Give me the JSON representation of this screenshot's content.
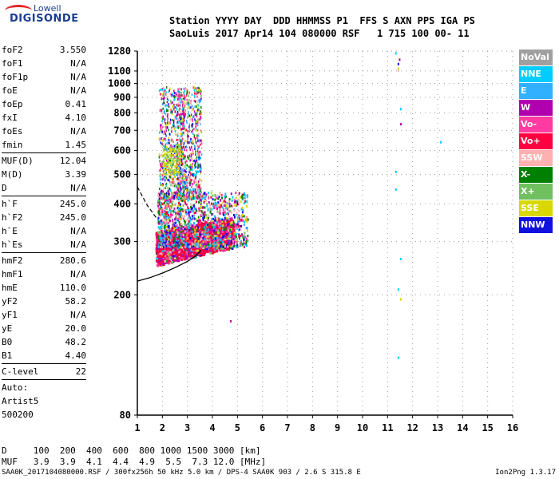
{
  "logo": {
    "line1": "Lowell",
    "line2": "DIGISONDE"
  },
  "header": {
    "line1": "Station YYYY DAY  DDD HHMMSS P1  FFS S AXN PPS IGA PS",
    "line2": "SaoLuis 2017 Apr14 104 080000 RSF   1 715 100 00- 11"
  },
  "params": [
    {
      "label": "foF2",
      "value": "3.550"
    },
    {
      "label": "foF1",
      "value": "N/A"
    },
    {
      "label": "foF1p",
      "value": "N/A"
    },
    {
      "label": "foE",
      "value": "N/A"
    },
    {
      "label": "foEp",
      "value": "0.41"
    },
    {
      "label": "fxI",
      "value": "4.10"
    },
    {
      "label": "foEs",
      "value": "N/A"
    },
    {
      "label": "fmin",
      "value": "1.45"
    },
    {
      "sep": true
    },
    {
      "label": "MUF(D)",
      "value": "12.04"
    },
    {
      "label": "M(D)",
      "value": "3.39"
    },
    {
      "label": "D",
      "value": "N/A"
    },
    {
      "sep": true
    },
    {
      "label": "h`F",
      "value": "245.0"
    },
    {
      "label": "h`F2",
      "value": "245.0"
    },
    {
      "label": "h`E",
      "value": "N/A"
    },
    {
      "label": "h`Es",
      "value": "N/A"
    },
    {
      "sep": true
    },
    {
      "label": "hmF2",
      "value": "280.6"
    },
    {
      "label": "hmF1",
      "value": "N/A"
    },
    {
      "label": "hmE",
      "value": "110.0"
    },
    {
      "label": "yF2",
      "value": "58.2"
    },
    {
      "label": "yF1",
      "value": "N/A"
    },
    {
      "label": "yE",
      "value": "20.0"
    },
    {
      "label": "B0",
      "value": "48.2"
    },
    {
      "label": "B1",
      "value": "4.40"
    },
    {
      "sep": true
    },
    {
      "label": "C-level",
      "value": "22"
    },
    {
      "sep": true
    },
    {
      "text": "Auto:"
    },
    {
      "text": "Artist5"
    },
    {
      "text": "500200"
    }
  ],
  "legend": [
    {
      "label": "NoVal",
      "color": "#a0a0a0"
    },
    {
      "label": "NNE",
      "color": "#00ccff"
    },
    {
      "label": "E",
      "color": "#30b0ff"
    },
    {
      "label": "W",
      "color": "#b000b0"
    },
    {
      "label": "Vo-",
      "color": "#ff3aa0"
    },
    {
      "label": "Vo+",
      "color": "#ff0040"
    },
    {
      "label": "SSW",
      "color": "#ffb0b0"
    },
    {
      "label": "X-",
      "color": "#008000"
    },
    {
      "label": "X+",
      "color": "#70c060"
    },
    {
      "label": "SSE",
      "color": "#d8d800"
    },
    {
      "label": "NNW",
      "color": "#1010e0"
    }
  ],
  "dmuf": {
    "d_line": "D     100  200  400  600  800 1000 1500 3000 [km]",
    "muf_line": "MUF   3.9  3.9  4.1  4.4  4.9  5.5  7.3 12.0 [MHz]"
  },
  "footer": {
    "text": "SAA0K_2017104080000.RSF / 300fx256h 50 kHz 5.0 km / DPS-4 SAA0K 903 / 2.6 S 315.8 E",
    "version": "Ion2Png 1.3.17"
  },
  "chart_data": {
    "type": "scatter",
    "x": {
      "min": 1,
      "max": 16,
      "ticks": [
        1,
        2,
        3,
        4,
        5,
        6,
        7,
        8,
        9,
        10,
        11,
        12,
        13,
        14,
        15,
        16
      ]
    },
    "y": {
      "scale": "log",
      "min": 80,
      "max": 1280,
      "ticks": [
        80,
        200,
        300,
        400,
        500,
        600,
        700,
        800,
        900,
        1000,
        1100,
        1280
      ]
    },
    "grid": "dotted",
    "legend_placement": "right",
    "clusters": [
      {
        "name": "F-layer o-trace",
        "x": [
          1.7,
          4.8
        ],
        "y": [
          240,
          330
        ],
        "color": "Vo+"
      },
      {
        "name": "F-layer spread",
        "x": [
          1.8,
          5.5
        ],
        "y": [
          280,
          420
        ],
        "color": "mixed"
      },
      {
        "name": "multi-hop spread",
        "x": [
          1.9,
          3.6
        ],
        "y": [
          420,
          1000
        ],
        "color": "mixed"
      }
    ],
    "isolated_points": [
      {
        "x": 11.3,
        "y": 1270,
        "color": "NNE"
      },
      {
        "x": 11.45,
        "y": 1210,
        "color": "W"
      },
      {
        "x": 11.4,
        "y": 1170,
        "color": "NNW"
      },
      {
        "x": 11.4,
        "y": 1130,
        "color": "SSE"
      },
      {
        "x": 11.4,
        "y": 1115,
        "color": "SSW"
      },
      {
        "x": 11.5,
        "y": 830,
        "color": "NNE"
      },
      {
        "x": 11.5,
        "y": 740,
        "color": "W"
      },
      {
        "x": 13.1,
        "y": 645,
        "color": "NNE"
      },
      {
        "x": 11.3,
        "y": 515,
        "color": "NNE"
      },
      {
        "x": 11.3,
        "y": 450,
        "color": "NNE"
      },
      {
        "x": 11.5,
        "y": 265,
        "color": "NNE"
      },
      {
        "x": 11.4,
        "y": 210,
        "color": "NNE"
      },
      {
        "x": 11.5,
        "y": 195,
        "color": "SSE"
      },
      {
        "x": 11.4,
        "y": 125,
        "color": "NNE"
      },
      {
        "x": 4.7,
        "y": 165,
        "color": "W"
      }
    ],
    "profile_curve": {
      "x": [
        1.0,
        1.5,
        2.0,
        2.5,
        3.0,
        3.3,
        3.55
      ],
      "y": [
        222,
        228,
        236,
        246,
        258,
        268,
        281
      ]
    },
    "dashed_extrapolation": {
      "x": [
        1.0,
        1.4,
        1.75
      ],
      "y": [
        455,
        395,
        360
      ]
    }
  }
}
